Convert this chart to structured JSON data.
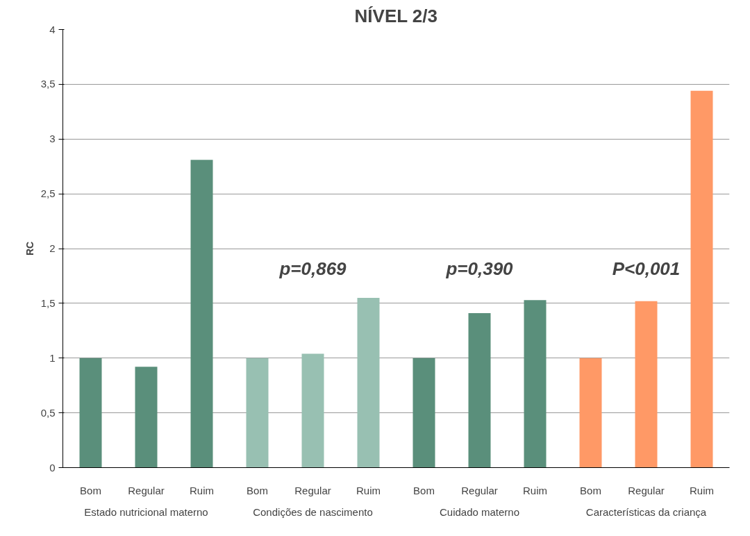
{
  "chart_data": {
    "type": "bar",
    "title": "NÍVEL 2/3",
    "ylabel": "RC",
    "categories": [
      "Bom",
      "Regular",
      "Ruim",
      "Bom",
      "Regular",
      "Ruim",
      "Bom",
      "Regular",
      "Ruim",
      "Bom",
      "Regular",
      "Ruim"
    ],
    "values": [
      1.0,
      0.92,
      2.81,
      1.0,
      1.04,
      1.55,
      1.0,
      1.41,
      1.53,
      1.0,
      1.52,
      3.44
    ],
    "colors": [
      "#5a8f7b",
      "#5a8f7b",
      "#5a8f7b",
      "#98c0b2",
      "#98c0b2",
      "#98c0b2",
      "#5a8f7b",
      "#5a8f7b",
      "#5a8f7b",
      "#ff9966",
      "#ff9966",
      "#ff9966"
    ],
    "ylim": [
      0,
      4
    ],
    "yticks": [
      0,
      {
        "value": 0.5,
        "label": "0,5"
      },
      1,
      {
        "value": 1.5,
        "label": "1,5"
      },
      2,
      {
        "value": 2.5,
        "label": "2,5"
      },
      3,
      {
        "value": 3.5,
        "label": "3,5"
      },
      4
    ],
    "grid": "y",
    "annotations": [
      "Estado nutricional materno",
      "Condições de nascimento",
      "Cuidado materno",
      "Características da criança",
      "p=0,869",
      "p=0,390",
      "P<0,001"
    ]
  }
}
